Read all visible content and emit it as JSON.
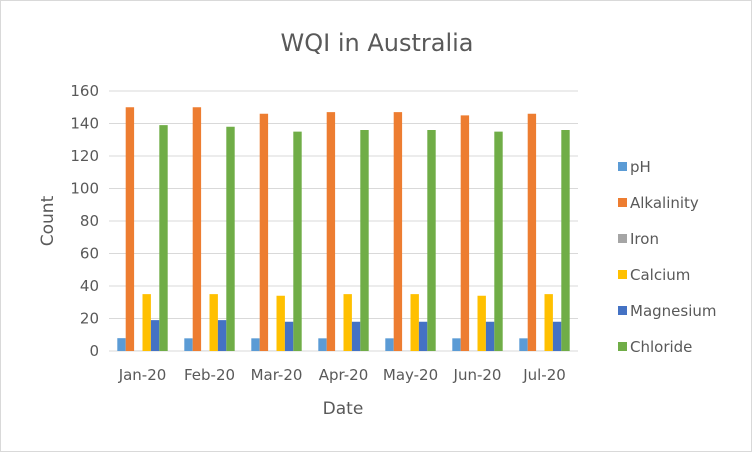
{
  "chart_data": {
    "type": "bar",
    "title": "WQI in Australia",
    "xlabel": "Date",
    "ylabel": "Count",
    "ylim": [
      0,
      160
    ],
    "yticks": [
      0,
      20,
      40,
      60,
      80,
      100,
      120,
      140,
      160
    ],
    "grid": true,
    "legend_position": "right",
    "categories": [
      "Jan-20",
      "Feb-20",
      "Mar-20",
      "Apr-20",
      "May-20",
      "Jun-20",
      "Jul-20"
    ],
    "series": [
      {
        "name": "pH",
        "color": "#5b9bd5",
        "values": [
          7.9,
          7.8,
          7.8,
          7.8,
          7.8,
          7.8,
          7.8
        ]
      },
      {
        "name": "Alkalinity",
        "color": "#ed7d31",
        "values": [
          150,
          150,
          146,
          147,
          147,
          145,
          146
        ]
      },
      {
        "name": "Iron",
        "color": "#a5a5a5",
        "values": [
          0.1,
          0.1,
          0.1,
          0.1,
          0.1,
          0.1,
          0.1
        ]
      },
      {
        "name": "Calcium",
        "color": "#ffc000",
        "values": [
          35,
          35,
          34,
          35,
          35,
          34,
          35
        ]
      },
      {
        "name": "Magnesium",
        "color": "#4472c4",
        "values": [
          19,
          19,
          18,
          18,
          18,
          18,
          18
        ]
      },
      {
        "name": "Chloride",
        "color": "#70ad47",
        "values": [
          139,
          138,
          135,
          136,
          136,
          135,
          136
        ]
      }
    ]
  }
}
